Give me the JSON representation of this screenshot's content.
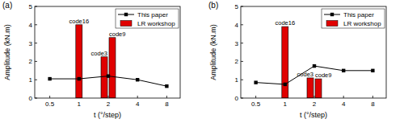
{
  "chart_data": [
    {
      "type": "line",
      "title": "(a)",
      "x_label": "t (°/step)",
      "y_label": "Amplitude (kN.m)",
      "xlim": [
        0.35,
        11
      ],
      "xticks": [
        0.5,
        1,
        2,
        4,
        8
      ],
      "ylim": [
        0,
        5
      ],
      "yticks": [
        0,
        1,
        2,
        3,
        4,
        5
      ],
      "log": "x",
      "legend": "upper right",
      "series": [
        {
          "name": "This paper",
          "type": "line",
          "color": "#000000",
          "marker": "square",
          "line_style": "solid",
          "x": [
            0.5,
            1,
            2,
            4,
            8
          ],
          "values": [
            1.05,
            1.05,
            1.2,
            1.0,
            0.65
          ]
        },
        {
          "name": "LR workshop",
          "type": "bar",
          "color": "#e00000",
          "x": [
            1,
            2,
            2
          ],
          "values": [
            4.0,
            2.25,
            3.3
          ],
          "annotations": [
            "code16",
            "code3",
            "code9"
          ]
        }
      ]
    },
    {
      "type": "line",
      "title": "(b)",
      "x_label": "t (°/step)",
      "y_label": "Amplitude (kN.m)",
      "xlim": [
        0.35,
        11
      ],
      "xticks": [
        0.5,
        1,
        2,
        4,
        8
      ],
      "ylim": [
        0,
        5
      ],
      "yticks": [
        0,
        1,
        2,
        3,
        4,
        5
      ],
      "log": "x",
      "legend": "upper right",
      "series": [
        {
          "name": "This paper",
          "type": "line",
          "color": "#000000",
          "marker": "square",
          "line_style": "solid",
          "x": [
            0.5,
            1,
            2,
            4,
            8
          ],
          "values": [
            0.85,
            0.75,
            1.75,
            1.5,
            1.5
          ]
        },
        {
          "name": "LR workshop",
          "type": "bar",
          "color": "#e00000",
          "x": [
            1,
            2,
            2
          ],
          "values": [
            3.9,
            1.1,
            1.05
          ],
          "annotations": [
            "code16",
            "code3",
            "code9"
          ]
        }
      ]
    }
  ]
}
